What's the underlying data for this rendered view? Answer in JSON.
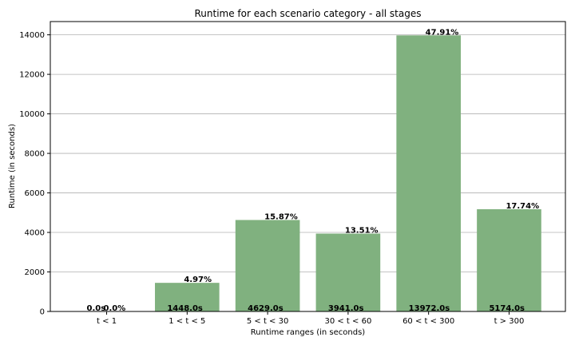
{
  "chart_data": {
    "type": "bar",
    "title": "Runtime for each scenario category - all stages",
    "xlabel": "Runtime ranges (in seconds)",
    "ylabel": "Runtime (in seconds)",
    "categories": [
      "t < 1",
      "1 < t < 5",
      "5 < t < 30",
      "30 < t < 60",
      "60 < t < 300",
      "t > 300"
    ],
    "values": [
      0.0,
      1448.0,
      4629.0,
      3941.0,
      13972.0,
      5174.0
    ],
    "value_labels": [
      "0.0s",
      "1448.0s",
      "4629.0s",
      "3941.0s",
      "13972.0s",
      "5174.0s"
    ],
    "percent_labels": [
      "0.0%",
      "4.97%",
      "15.87%",
      "13.51%",
      "47.91%",
      "17.74%"
    ],
    "y_ticks": [
      "0",
      "2000",
      "4000",
      "6000",
      "8000",
      "10000",
      "12000",
      "14000"
    ],
    "ylim": [
      0,
      14671
    ],
    "grid": true,
    "bar_color": "#80b17f"
  }
}
